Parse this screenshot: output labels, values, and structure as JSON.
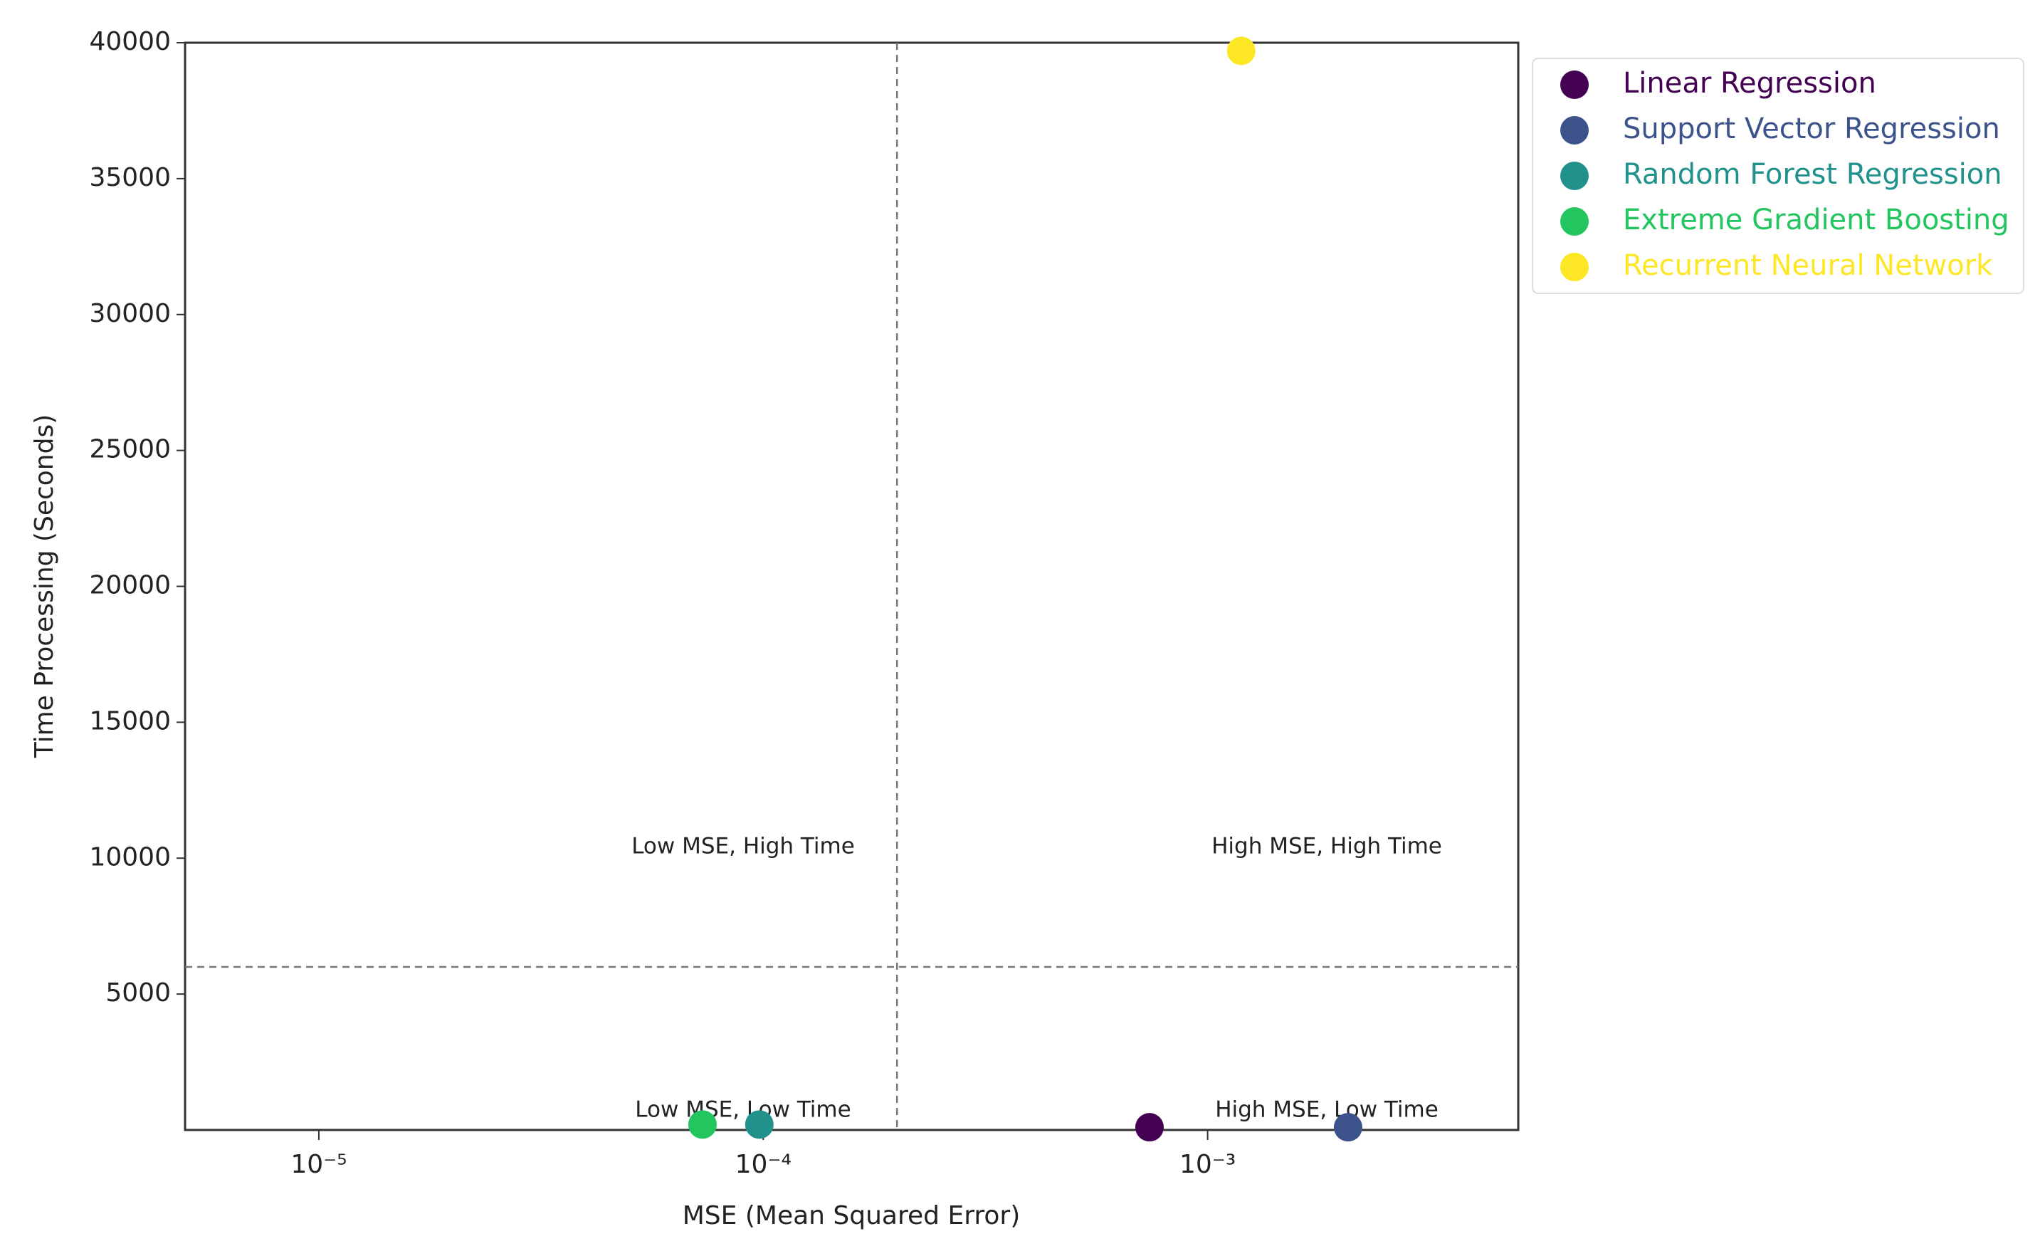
{
  "chart_data": {
    "type": "scatter",
    "xlabel": "MSE (Mean Squared Error)",
    "ylabel": "Time Processing (Seconds)",
    "xscale": "log",
    "xlim": [
      5e-06,
      0.005
    ],
    "ylim": [
      0,
      40000
    ],
    "xticks": [
      {
        "value": 1e-05,
        "label": "10⁻⁵"
      },
      {
        "value": 0.0001,
        "label": "10⁻⁴"
      },
      {
        "value": 0.001,
        "label": "10⁻³"
      }
    ],
    "yticks": [
      5000,
      10000,
      15000,
      20000,
      25000,
      30000,
      35000,
      40000
    ],
    "vlines": [
      0.0002
    ],
    "hlines": [
      6000
    ],
    "legend": "outside-upper-right",
    "annotations": [
      "Low MSE, High Time",
      "High MSE, High Time",
      "Low MSE, Low Time",
      "High MSE, Low Time"
    ],
    "series": [
      {
        "name": "Linear Regression",
        "color": "#440154",
        "x": [
          0.00074
        ],
        "values": [
          100
        ]
      },
      {
        "name": "Support Vector Regression",
        "color": "#3b528b",
        "x": [
          0.00207
        ],
        "values": [
          100
        ]
      },
      {
        "name": "Random Forest Regression",
        "color": "#21918c",
        "x": [
          9.8e-05
        ],
        "values": [
          200
        ]
      },
      {
        "name": "Extreme Gradient Boosting",
        "color": "#22c55e",
        "x": [
          7.3e-05
        ],
        "values": [
          200
        ]
      },
      {
        "name": "Recurrent Neural Network",
        "color": "#fde725",
        "x": [
          0.00119
        ],
        "values": [
          39700
        ]
      }
    ]
  }
}
